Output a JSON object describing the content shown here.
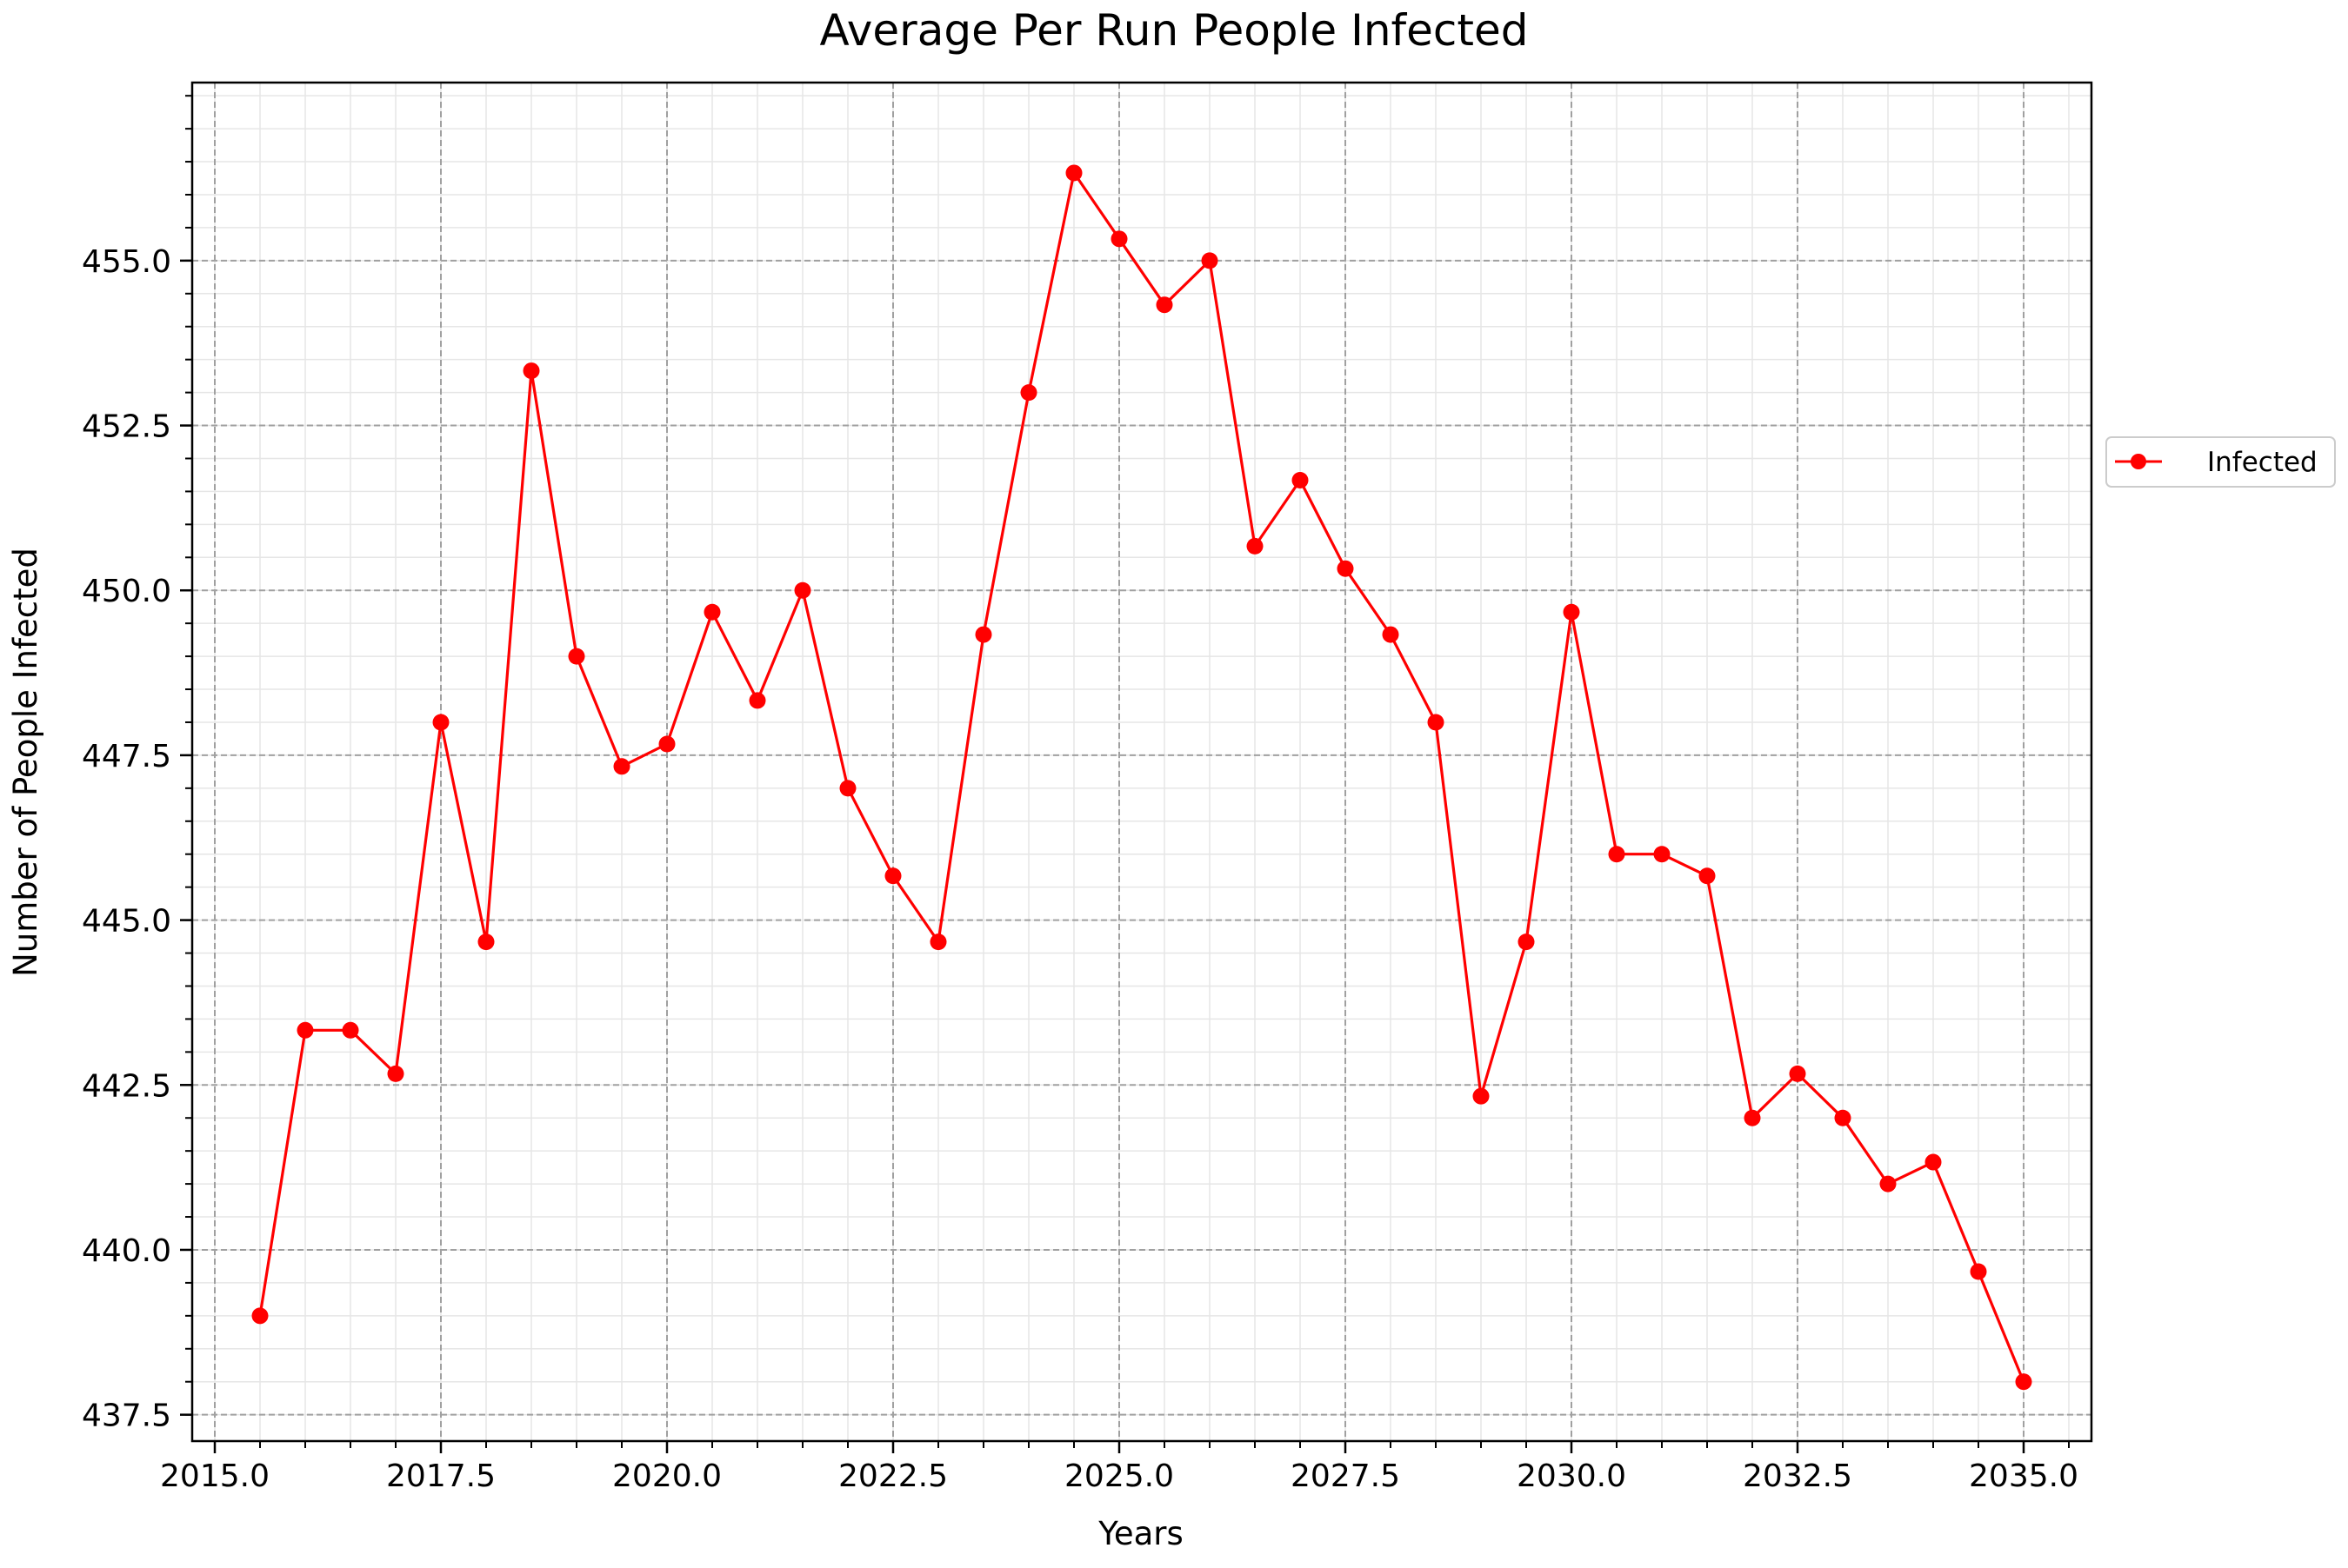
{
  "chart_data": {
    "type": "line",
    "title": "Average Per Run People Infected",
    "xlabel": "Years",
    "ylabel": "Number of People Infected",
    "xlim": [
      2014.75,
      2035.75
    ],
    "ylim": [
      437.1,
      457.7
    ],
    "x_ticks": [
      2015.0,
      2017.5,
      2020.0,
      2022.5,
      2025.0,
      2027.5,
      2030.0,
      2032.5,
      2035.0
    ],
    "x_tick_labels": [
      "2015.0",
      "2017.5",
      "2020.0",
      "2022.5",
      "2025.0",
      "2027.5",
      "2030.0",
      "2032.5",
      "2035.0"
    ],
    "y_ticks": [
      437.5,
      440.0,
      442.5,
      445.0,
      447.5,
      450.0,
      452.5,
      455.0
    ],
    "y_tick_labels": [
      "437.5",
      "440.0",
      "442.5",
      "445.0",
      "447.5",
      "450.0",
      "452.5",
      "455.0"
    ],
    "grid": true,
    "minor_grid": true,
    "legend_position": "outside-right",
    "series": [
      {
        "name": "Infected",
        "color": "#ff0000",
        "marker": "circle",
        "x": [
          2015.5,
          2016.0,
          2016.5,
          2017.0,
          2017.5,
          2018.0,
          2018.5,
          2019.0,
          2019.5,
          2020.0,
          2020.5,
          2021.0,
          2021.5,
          2022.0,
          2022.5,
          2023.0,
          2023.5,
          2024.0,
          2024.5,
          2025.0,
          2025.5,
          2026.0,
          2026.5,
          2027.0,
          2027.5,
          2028.0,
          2028.5,
          2029.0,
          2029.5,
          2030.0,
          2030.5,
          2031.0,
          2031.5,
          2032.0,
          2032.5,
          2033.0,
          2033.5,
          2034.0,
          2034.5,
          2035.0
        ],
        "values": [
          439.0,
          443.33,
          443.33,
          442.67,
          448.0,
          444.67,
          453.33,
          449.0,
          447.33,
          447.67,
          449.67,
          448.33,
          450.0,
          447.0,
          445.67,
          444.67,
          449.33,
          453.0,
          456.33,
          455.33,
          454.33,
          455.0,
          450.67,
          451.67,
          450.33,
          449.33,
          448.0,
          442.33,
          444.67,
          449.67,
          446.0,
          446.0,
          445.67,
          442.0,
          442.67,
          442.0,
          441.0,
          441.33,
          439.67,
          438.0
        ]
      }
    ]
  }
}
